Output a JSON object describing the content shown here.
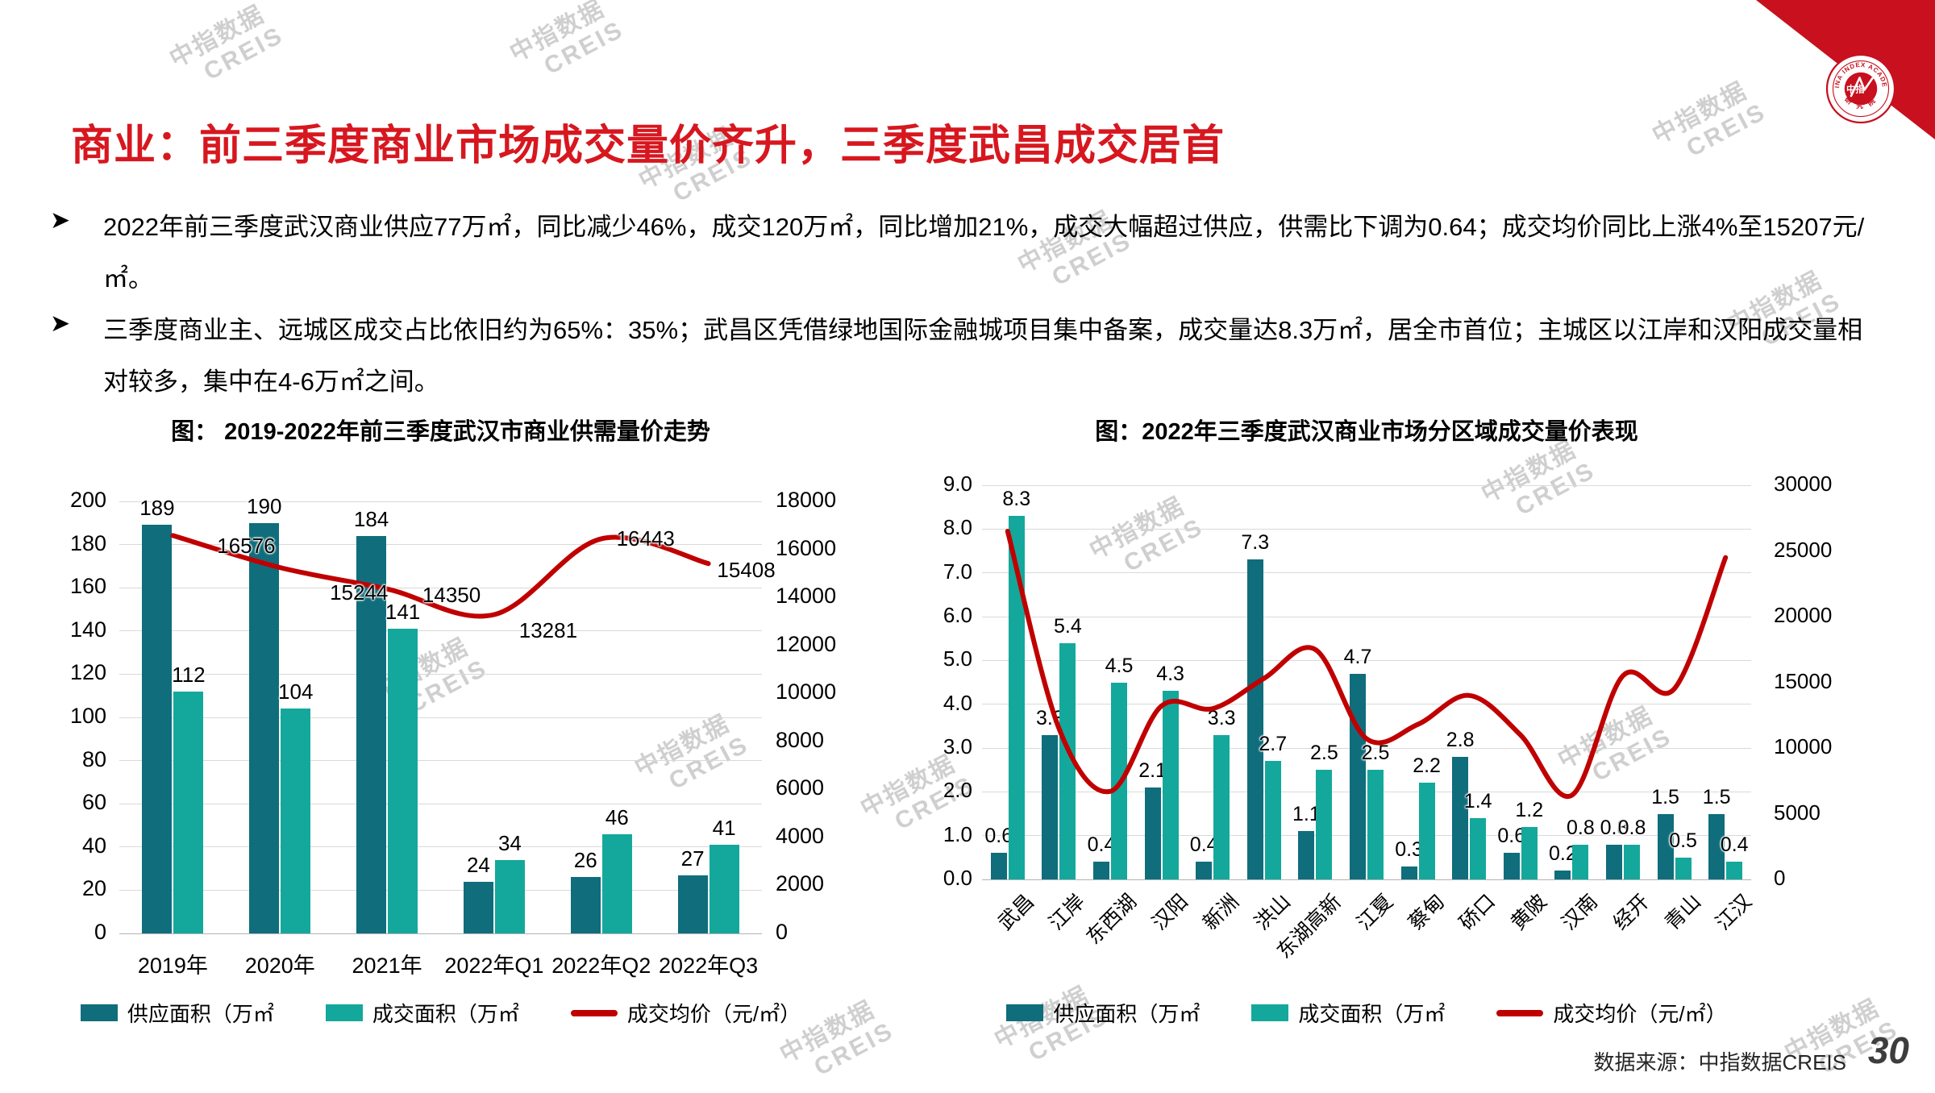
{
  "header": {
    "title": "商业：前三季度商业市场成交量价齐升，三季度武昌成交居首"
  },
  "bullets": [
    "2022年前三季度武汉商业供应77万㎡，同比减少46%，成交120万㎡，同比增加21%，成交大幅超过供应，供需比下调为0.64；成交均价同比上涨4%至15207元/㎡。",
    "三季度商业主、远城区成交占比依旧约为65%：35%；武昌区凭借绿地国际金融城项目集中备案，成交量达8.3万㎡，居全市首位；主城区以江岸和汉阳成交量相对较多，集中在4-6万㎡之间。"
  ],
  "watermark": {
    "line1": "中指数据",
    "line2": "CREIS"
  },
  "logo": {
    "ring_top": "CHINA INDEX ACADEMY",
    "ring_bottom": "研 究 院",
    "center": "中指"
  },
  "footer": {
    "source": "数据来源：中指数据CREIS",
    "page": "30"
  },
  "colors": {
    "title_red": "#d7171f",
    "corner_red": "#c8101e",
    "supply_bar": "#0f6d7c",
    "transaction_bar": "#14a89c",
    "price_line": "#c00000",
    "grid": "#d9d9d9"
  },
  "chart_data": [
    {
      "type": "bar+line",
      "title": "图： 2019-2022年前三季度武汉市商业供需量价走势",
      "categories": [
        "2019年",
        "2020年",
        "2021年",
        "2022年Q1",
        "2022年Q2",
        "2022年Q3"
      ],
      "series": [
        {
          "name": "供应面积（万㎡",
          "type": "bar",
          "axis": "left",
          "color_role": "supply_bar",
          "values": [
            189,
            190,
            184,
            24,
            26,
            27
          ],
          "label_decimals": 0
        },
        {
          "name": "成交面积（万㎡",
          "type": "bar",
          "axis": "left",
          "color_role": "transaction_bar",
          "values": [
            112,
            104,
            141,
            34,
            46,
            41
          ],
          "label_decimals": 0
        },
        {
          "name": "成交均价（元/㎡）",
          "type": "line",
          "axis": "right",
          "color_role": "price_line",
          "values": [
            16576,
            15244,
            14350,
            13281,
            16443,
            15408
          ],
          "label_decimals": 0,
          "labeled": true
        }
      ],
      "left_axis": {
        "min": 0,
        "max": 200,
        "step": 20,
        "decimals": 0
      },
      "right_axis": {
        "min": 0,
        "max": 18000,
        "step": 2000,
        "decimals": 0
      },
      "grid": true,
      "legend_position": "bottom"
    },
    {
      "type": "bar+line",
      "title": "图：2022年三季度武汉商业市场分区域成交量价表现",
      "categories": [
        "武昌",
        "江岸",
        "东西湖",
        "汉阳",
        "新洲",
        "洪山",
        "东湖高新",
        "江夏",
        "蔡甸",
        "硚口",
        "黄陂",
        "汉南",
        "经开",
        "青山",
        "江汉"
      ],
      "series": [
        {
          "name": "供应面积（万㎡",
          "type": "bar",
          "axis": "left",
          "color_role": "supply_bar",
          "values": [
            0.6,
            3.3,
            0.4,
            2.1,
            0.4,
            7.3,
            1.1,
            4.7,
            0.3,
            2.8,
            0.6,
            0.2,
            0.8,
            1.5,
            1.5
          ],
          "label_decimals": 1
        },
        {
          "name": "成交面积（万㎡",
          "type": "bar",
          "axis": "left",
          "color_role": "transaction_bar",
          "values": [
            8.3,
            5.4,
            4.5,
            4.3,
            3.3,
            2.7,
            2.5,
            2.5,
            2.2,
            1.4,
            1.2,
            0.8,
            0.8,
            0.5,
            0.4
          ],
          "label_decimals": 1
        },
        {
          "name": "成交均价（元/㎡）",
          "type": "line",
          "axis": "right",
          "color_role": "price_line",
          "values": [
            26500,
            11500,
            6700,
            13200,
            13000,
            15300,
            17500,
            10700,
            11800,
            14000,
            11000,
            6400,
            15500,
            14500,
            24500
          ],
          "labeled": false,
          "values_are_estimates": true
        }
      ],
      "left_axis": {
        "min": 0,
        "max": 9,
        "step": 1,
        "decimals": 1
      },
      "right_axis": {
        "min": 0,
        "max": 30000,
        "step": 5000,
        "decimals": 0
      },
      "grid": true,
      "legend_position": "bottom",
      "x_label_rotation": -45
    }
  ]
}
